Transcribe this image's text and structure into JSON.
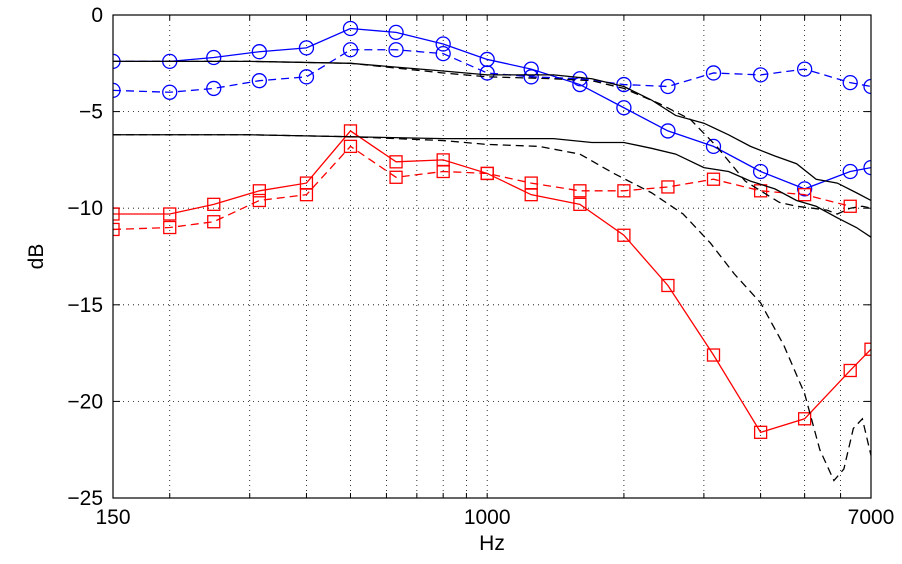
{
  "chart_data": {
    "type": "line",
    "xlabel": "Hz",
    "ylabel": "dB",
    "x_scale": "log",
    "xlim": [
      150,
      7000
    ],
    "ylim": [
      -25,
      0
    ],
    "x_ticks": [
      150,
      1000,
      7000
    ],
    "x_tick_labels": [
      "150",
      "1000",
      "7000"
    ],
    "x_grid": [
      200,
      300,
      400,
      500,
      600,
      700,
      800,
      900,
      1000,
      2000,
      3000,
      4000,
      5000,
      6000,
      7000
    ],
    "y_ticks": [
      0,
      -5,
      -10,
      -15,
      -20,
      -25
    ],
    "y_tick_labels": [
      "0",
      "−5",
      "−10",
      "−15",
      "−20",
      "−25"
    ],
    "grid": true,
    "grid_style": "dotted",
    "series": [
      {
        "color": "#0000ff",
        "dash": "solid",
        "marker": "circle",
        "x": [
          150,
          200,
          250,
          315,
          400,
          500,
          630,
          800,
          1000,
          1250,
          1600,
          2000,
          2500,
          3150,
          4000,
          5000,
          6300,
          7000
        ],
        "y": [
          -2.4,
          -2.4,
          -2.2,
          -1.9,
          -1.7,
          -0.7,
          -0.9,
          -1.5,
          -2.3,
          -2.8,
          -3.6,
          -4.8,
          -6.0,
          -6.8,
          -8.1,
          -9.0,
          -8.1,
          -7.9
        ]
      },
      {
        "color": "#0000ff",
        "dash": "dashed",
        "marker": "circle",
        "x": [
          150,
          200,
          250,
          315,
          400,
          500,
          630,
          800,
          1000,
          1250,
          1600,
          2000,
          2500,
          3150,
          4000,
          5000,
          6300,
          7000
        ],
        "y": [
          -3.9,
          -4.0,
          -3.8,
          -3.4,
          -3.2,
          -1.8,
          -1.8,
          -2.0,
          -3.0,
          -3.2,
          -3.3,
          -3.6,
          -3.7,
          -3.0,
          -3.1,
          -2.8,
          -3.5,
          -3.7
        ]
      },
      {
        "color": "#ff0000",
        "dash": "solid",
        "marker": "square",
        "x": [
          150,
          200,
          250,
          315,
          400,
          500,
          630,
          800,
          1000,
          1250,
          1600,
          2000,
          2500,
          3150,
          4000,
          5000,
          6300,
          7000
        ],
        "y": [
          -10.3,
          -10.3,
          -9.8,
          -9.1,
          -8.7,
          -6.0,
          -7.6,
          -7.5,
          -8.2,
          -9.3,
          -9.8,
          -11.4,
          -14.0,
          -17.6,
          -21.6,
          -20.9,
          -18.4,
          -17.3
        ]
      },
      {
        "color": "#ff0000",
        "dash": "dashed",
        "marker": "square",
        "x": [
          150,
          200,
          250,
          315,
          400,
          500,
          630,
          800,
          1000,
          1250,
          1600,
          2000,
          2500,
          3150,
          4000,
          5000,
          6300
        ],
        "y": [
          -11.1,
          -11.0,
          -10.7,
          -9.6,
          -9.3,
          -6.8,
          -8.4,
          -8.1,
          -8.2,
          -8.7,
          -9.1,
          -9.1,
          -8.9,
          -8.5,
          -9.1,
          -9.3,
          -9.9
        ]
      },
      {
        "color": "#000000",
        "dash": "solid",
        "marker": "none",
        "x": [
          150,
          300,
          500,
          800,
          1000,
          1400,
          1700,
          2000,
          2300,
          2600,
          3000,
          3400,
          3800,
          4300,
          4800,
          5300,
          5900,
          6500,
          7000
        ],
        "y": [
          -2.4,
          -2.4,
          -2.5,
          -2.9,
          -3.1,
          -3.1,
          -3.3,
          -3.7,
          -4.4,
          -5.2,
          -5.6,
          -6.2,
          -6.8,
          -7.3,
          -7.7,
          -8.5,
          -8.7,
          -9.2,
          -9.6
        ]
      },
      {
        "color": "#000000",
        "dash": "solid",
        "marker": "none",
        "x": [
          150,
          300,
          500,
          800,
          1000,
          1400,
          1700,
          2000,
          2300,
          2600,
          3000,
          3400,
          3800,
          4300,
          4800,
          5300,
          5900,
          6500,
          7000
        ],
        "y": [
          -6.2,
          -6.2,
          -6.3,
          -6.4,
          -6.4,
          -6.4,
          -6.6,
          -6.6,
          -6.9,
          -7.2,
          -7.9,
          -8.1,
          -8.6,
          -9.0,
          -9.6,
          -9.9,
          -10.5,
          -11.0,
          -11.5
        ]
      },
      {
        "color": "#000000",
        "dash": "dashed",
        "marker": "none",
        "x": [
          150,
          300,
          500,
          800,
          1000,
          1400,
          1700,
          2000,
          2400,
          2800,
          3200,
          3700,
          4000,
          4400,
          4800,
          5200,
          5600,
          5900,
          6300,
          6700,
          7000
        ],
        "y": [
          -2.4,
          -2.4,
          -2.5,
          -3.0,
          -3.2,
          -3.3,
          -3.4,
          -3.8,
          -4.6,
          -5.4,
          -6.8,
          -8.6,
          -9.1,
          -9.7,
          -9.9,
          -10.0,
          -10.1,
          -10.3,
          -10.0,
          -9.9,
          -10.0
        ]
      },
      {
        "color": "#000000",
        "dash": "dashed",
        "marker": "none",
        "x": [
          150,
          300,
          500,
          800,
          1000,
          1300,
          1600,
          1900,
          2300,
          2700,
          3100,
          3500,
          4000,
          4500,
          5000,
          5400,
          5800,
          6100,
          6400,
          6700,
          7000
        ],
        "y": [
          -6.2,
          -6.2,
          -6.3,
          -6.5,
          -6.7,
          -6.8,
          -7.2,
          -8.2,
          -9.2,
          -10.3,
          -11.8,
          -13.4,
          -14.9,
          -17.1,
          -19.6,
          -22.5,
          -24.1,
          -23.5,
          -21.4,
          -20.9,
          -22.8
        ]
      }
    ]
  }
}
